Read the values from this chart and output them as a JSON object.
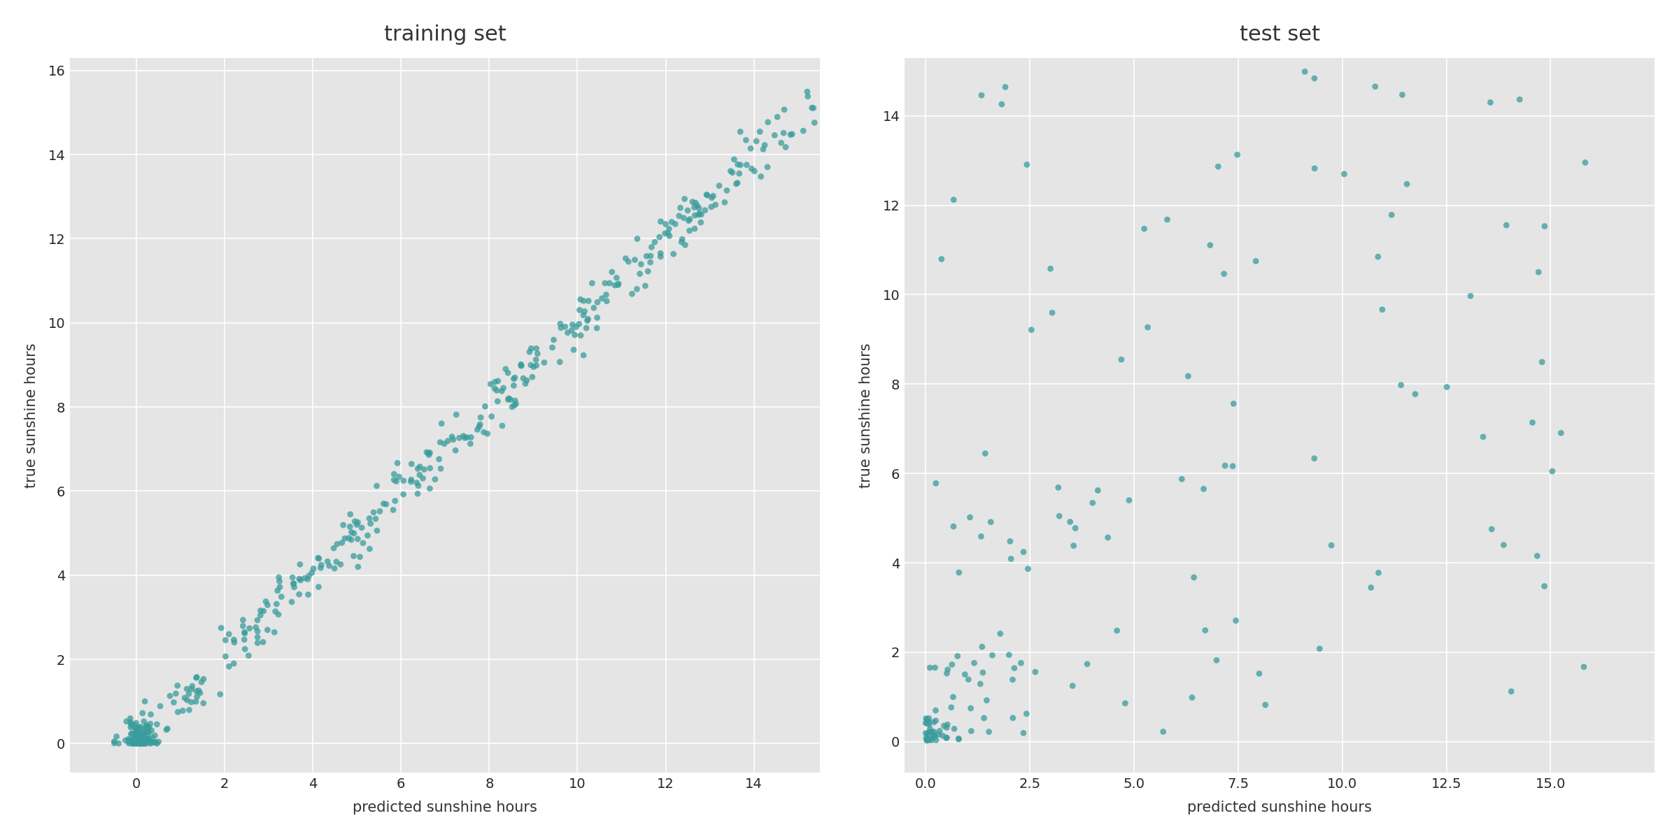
{
  "title_train": "training set",
  "title_test": "test set",
  "xlabel": "predicted sunshine hours",
  "ylabel": "true sunshine hours",
  "dot_color": "#3a9c9c",
  "dot_alpha": 0.75,
  "dot_size": 40,
  "bg_color": "#e5e5e5",
  "fig_bg_color": "#ffffff",
  "train_xlim": [
    -1.5,
    15.5
  ],
  "train_ylim": [
    -0.7,
    16.3
  ],
  "test_xlim": [
    -0.5,
    17.5
  ],
  "test_ylim": [
    -0.7,
    15.3
  ],
  "title_fontsize": 22,
  "label_fontsize": 15,
  "tick_fontsize": 14,
  "n_train": 500,
  "n_test": 160
}
